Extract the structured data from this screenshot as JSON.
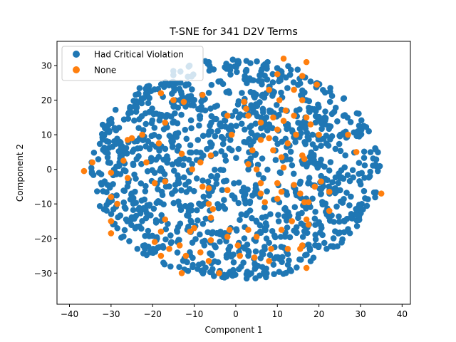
{
  "chart_data": {
    "type": "scatter",
    "title": "T-SNE for 341 D2V Terms",
    "xlabel": "Component 1",
    "ylabel": "Component 2",
    "xlim": [
      -43,
      42
    ],
    "ylim": [
      -39,
      37
    ],
    "xticks": [
      -40,
      -30,
      -20,
      -10,
      0,
      10,
      20,
      30,
      40
    ],
    "yticks": [
      -30,
      -20,
      -10,
      0,
      10,
      20,
      30
    ],
    "grid": false,
    "legend_position": "top-left",
    "series": [
      {
        "name": "Had Critical Violation",
        "color": "#1f77b4",
        "generator": {
          "count": 1250,
          "center": [
            0,
            0
          ],
          "spread_x": 35,
          "spread_y": 32,
          "seed": 7
        }
      },
      {
        "name": "None",
        "color": "#ff7f0e",
        "points": [
          [
            11.5,
            32
          ],
          [
            17,
            31
          ],
          [
            10,
            27.5
          ],
          [
            16,
            27
          ],
          [
            19.5,
            24.5
          ],
          [
            8,
            23
          ],
          [
            14,
            23
          ],
          [
            -18,
            22
          ],
          [
            -8,
            21.5
          ],
          [
            -15,
            20
          ],
          [
            -12.5,
            19.5
          ],
          [
            2,
            19.5
          ],
          [
            2.5,
            17.5
          ],
          [
            10.5,
            20
          ],
          [
            16,
            20
          ],
          [
            12,
            17
          ],
          [
            3,
            15.5
          ],
          [
            -2,
            15.5
          ],
          [
            -17,
            13.5
          ],
          [
            6,
            13.5
          ],
          [
            9,
            15
          ],
          [
            14,
            15.5
          ],
          [
            17,
            15
          ],
          [
            18,
            13
          ],
          [
            11.5,
            14
          ],
          [
            20,
            10
          ],
          [
            27,
            10
          ],
          [
            -1,
            10
          ],
          [
            10,
            11.5
          ],
          [
            14.5,
            10
          ],
          [
            -22.5,
            10
          ],
          [
            -25,
            9
          ],
          [
            -26,
            8.5
          ],
          [
            6,
            8.5
          ],
          [
            8,
            9
          ],
          [
            12.5,
            7.5
          ],
          [
            -18.5,
            7.5
          ],
          [
            9,
            5.5
          ],
          [
            4,
            5.5
          ],
          [
            -13,
            4.5
          ],
          [
            -6,
            4
          ],
          [
            11,
            3.5
          ],
          [
            -27,
            2.5
          ],
          [
            16,
            4
          ],
          [
            29,
            5
          ],
          [
            -34.5,
            2
          ],
          [
            -8.5,
            2
          ],
          [
            -21.5,
            2
          ],
          [
            3,
            1.5
          ],
          [
            16.5,
            3
          ],
          [
            -30,
            -1
          ],
          [
            -36.5,
            -0.5
          ],
          [
            -10.5,
            0
          ],
          [
            11.5,
            0.5
          ],
          [
            5,
            0
          ],
          [
            -26,
            -2.5
          ],
          [
            -19.5,
            -4
          ],
          [
            -8,
            -5
          ],
          [
            -6.5,
            -5.5
          ],
          [
            -17,
            -3.5
          ],
          [
            6,
            -4
          ],
          [
            10,
            -4
          ],
          [
            14,
            -4.5
          ],
          [
            20.5,
            -3.5
          ],
          [
            19,
            -5
          ],
          [
            35,
            -7
          ],
          [
            6,
            -7
          ],
          [
            -2,
            -6
          ],
          [
            11,
            -6.5
          ],
          [
            15.5,
            -7
          ],
          [
            -30,
            -8
          ],
          [
            22.5,
            -6.5
          ],
          [
            10,
            -8.5
          ],
          [
            16.5,
            -9.5
          ],
          [
            17.5,
            -9.5
          ],
          [
            7,
            -9.5
          ],
          [
            -6.5,
            -10
          ],
          [
            -5.5,
            -11.5
          ],
          [
            -28.5,
            -10
          ],
          [
            -30,
            -15
          ],
          [
            -17,
            -14.5
          ],
          [
            -6,
            -14
          ],
          [
            13.5,
            -15
          ],
          [
            17,
            -14.5
          ],
          [
            17.5,
            -16
          ],
          [
            22.5,
            -12
          ],
          [
            -30,
            -18.5
          ],
          [
            -18,
            -18
          ],
          [
            -11,
            -18
          ],
          [
            -10,
            -17
          ],
          [
            -1.5,
            -17.5
          ],
          [
            3,
            -17.5
          ],
          [
            11,
            -17.5
          ],
          [
            5,
            -19.5
          ],
          [
            -6,
            -20.5
          ],
          [
            0.5,
            -22
          ],
          [
            -2,
            -19.5
          ],
          [
            8.5,
            -23
          ],
          [
            12.5,
            -23
          ],
          [
            15.5,
            -23
          ],
          [
            16,
            -22
          ],
          [
            -13.5,
            -22
          ],
          [
            -19.5,
            -21
          ],
          [
            -16,
            -23
          ],
          [
            -18,
            -25
          ],
          [
            -12,
            -25
          ],
          [
            -8.5,
            -24
          ],
          [
            1,
            -25
          ],
          [
            4.5,
            -25.5
          ],
          [
            -6.5,
            -26.5
          ],
          [
            8,
            -26.5
          ],
          [
            17,
            -28.5
          ],
          [
            -13,
            -30
          ],
          [
            -4,
            -30
          ]
        ]
      }
    ]
  }
}
